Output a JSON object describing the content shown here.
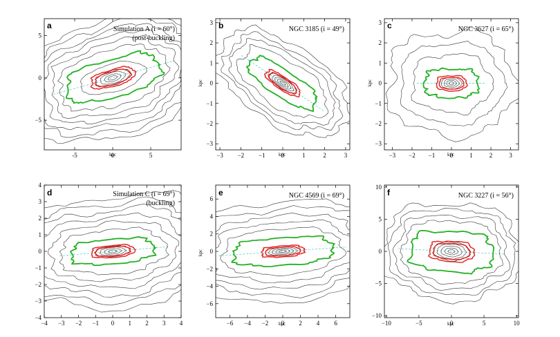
{
  "figure": {
    "background": "#ffffff",
    "colors": {
      "contour": "#333333",
      "green": "#22b022",
      "red": "#e02020",
      "axis_dash": "#60d0d0"
    }
  },
  "chart_data": [
    {
      "type": "contour",
      "panel": "a",
      "title": "Simulation A (i = 60°)",
      "subtitle": "(post-buckling)",
      "xlabel": "kpc",
      "ylabel": "",
      "xlim": [
        -9,
        9
      ],
      "ylim": [
        -8.5,
        7
      ],
      "xticks": [
        -5,
        0,
        5
      ],
      "yticks": [
        5,
        0,
        -5
      ],
      "xticklabels": [
        "-5",
        "0",
        "5"
      ],
      "yticklabels": [
        "5",
        "0",
        "−5"
      ],
      "pa_deg": 14,
      "axis_ratio": 0.42,
      "green_major_kpc": 6.2,
      "red_major_kpc": 2.9,
      "grey_major_kpc": [
        0.6,
        1.1,
        1.7,
        2.3,
        4.4,
        7.2,
        8.3,
        9.3,
        10.2,
        11.2,
        12.2
      ]
    },
    {
      "type": "contour",
      "panel": "b",
      "title": "NGC 3185 (i = 49°)",
      "xlabel": "kpc",
      "ylabel": "kpc",
      "xlim": [
        -3.2,
        3.2
      ],
      "ylim": [
        -3.3,
        3.2
      ],
      "xticks": [
        -3,
        -2,
        -1,
        0,
        1,
        2,
        3
      ],
      "yticks": [
        3,
        2,
        1,
        0,
        -1,
        -2,
        -3
      ],
      "xticklabels": [
        "−3",
        "−2",
        "−1",
        "0",
        "1",
        "2",
        "3"
      ],
      "yticklabels": [
        "3",
        "2",
        "1",
        "0",
        "−1",
        "−2",
        "−3"
      ],
      "pa_deg": -35,
      "axis_ratio": 0.4,
      "green_major_kpc": 1.85,
      "red_major_kpc": 0.95,
      "grey_major_kpc": [
        0.15,
        0.3,
        0.45,
        0.6,
        0.75,
        2.4,
        2.8,
        3.1,
        3.5
      ]
    },
    {
      "type": "contour",
      "panel": "c",
      "title": "NGC 3627 (i = 65°)",
      "xlabel": "kpc",
      "ylabel": "kpc",
      "xlim": [
        -3.4,
        3.4
      ],
      "ylim": [
        -3.3,
        3.2
      ],
      "xticks": [
        -3,
        -2,
        -1,
        0,
        1,
        2,
        3
      ],
      "yticks": [
        3,
        2,
        1,
        0,
        -1,
        -2,
        -3
      ],
      "xticklabels": [
        "−3",
        "−2",
        "−1",
        "0",
        "1",
        "2",
        "3"
      ],
      "yticklabels": [
        "3",
        "2",
        "1",
        "0",
        "−1",
        "−2",
        "−3"
      ],
      "pa_deg": 0,
      "axis_ratio": 0.62,
      "green_major_kpc": 1.35,
      "red_major_kpc": 0.75,
      "grey_major_kpc": [
        0.12,
        0.25,
        0.38,
        0.52,
        2.0,
        2.6,
        3.2
      ]
    },
    {
      "type": "contour",
      "panel": "d",
      "title": "Simulation C (i = 69°)",
      "subtitle": "(buckling)",
      "xlabel": "",
      "ylabel": "",
      "xlim": [
        -4,
        4
      ],
      "ylim": [
        -4,
        4
      ],
      "xticks": [
        -4,
        -3,
        -2,
        -1,
        0,
        1,
        2,
        3,
        4
      ],
      "yticks": [
        4,
        3,
        2,
        1,
        0,
        -1,
        -2,
        -3,
        -4
      ],
      "xticklabels": [
        "−4",
        "−3",
        "−2",
        "−1",
        "0",
        "1",
        "2",
        "3",
        "4"
      ],
      "yticklabels": [
        "4",
        "3",
        "2",
        "1",
        "0",
        "−1",
        "−2",
        "−3",
        "−4"
      ],
      "pa_deg": 5,
      "axis_ratio": 0.36,
      "green_major_kpc": 2.4,
      "red_major_kpc": 1.25,
      "grey_major_kpc": [
        0.25,
        0.5,
        0.75,
        1.0,
        3.1,
        3.7,
        4.3,
        4.9,
        5.5,
        6.1
      ]
    },
    {
      "type": "contour",
      "panel": "e",
      "title": "NGC 4569 (i = 69°)",
      "xlabel": "kpc",
      "ylabel": "kpc",
      "xlim": [
        -7.6,
        7.6
      ],
      "ylim": [
        -7.6,
        7.6
      ],
      "xticks": [
        -6,
        -4,
        -2,
        0,
        2,
        4,
        6
      ],
      "yticks": [
        6,
        4,
        2,
        0,
        -2,
        -4,
        -6
      ],
      "xticklabels": [
        "−6",
        "−4",
        "−2",
        "0",
        "2",
        "4",
        "6"
      ],
      "yticklabels": [
        "6",
        "4",
        "2",
        "0",
        "−2",
        "−4",
        "−6"
      ],
      "pa_deg": 4,
      "axis_ratio": 0.33,
      "green_major_kpc": 5.6,
      "red_major_kpc": 2.4,
      "grey_major_kpc": [
        0.4,
        0.8,
        1.2,
        1.6,
        6.8,
        8.0,
        9.2,
        10.4,
        11.6
      ]
    },
    {
      "type": "contour",
      "panel": "f",
      "title": "NGC 3227 (i = 56°)",
      "xlabel": "kpc",
      "ylabel": "",
      "xlim": [
        -10.3,
        10.3
      ],
      "ylim": [
        -10.3,
        10.3
      ],
      "xticks": [
        -10,
        -5,
        0,
        5,
        10
      ],
      "yticks": [
        10,
        5,
        0,
        -5,
        -10
      ],
      "xticklabels": [
        "−10",
        "−5",
        "0",
        "5",
        "10"
      ],
      "yticklabels": [
        "10",
        "5",
        "0",
        "−5",
        "−10"
      ],
      "pa_deg": -3,
      "axis_ratio": 0.58,
      "green_major_kpc": 6.3,
      "red_major_kpc": 3.4,
      "grey_major_kpc": [
        0.5,
        1.0,
        1.6,
        2.2,
        2.8,
        7.6,
        8.6,
        9.6,
        10.6
      ]
    }
  ]
}
